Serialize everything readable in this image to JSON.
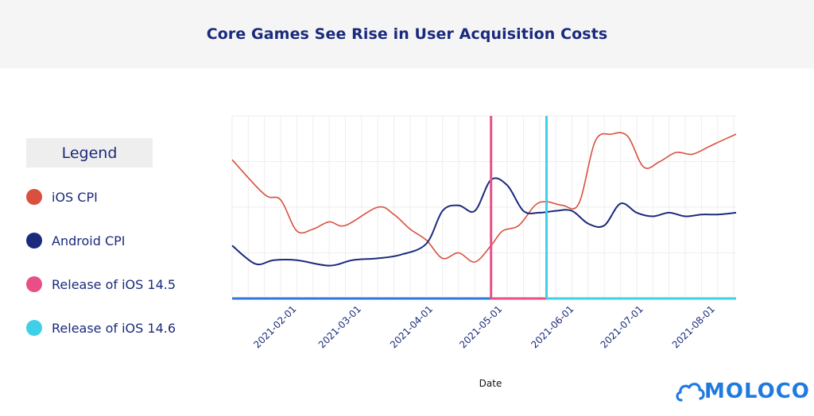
{
  "title": "Core Games See Rise in User Acquisition Costs",
  "legend": {
    "title": "Legend",
    "items": [
      {
        "label": "iOS CPI",
        "color": "#d9503f"
      },
      {
        "label": "Android CPI",
        "color": "#1a2a7c"
      },
      {
        "label": "Release of iOS 14.5",
        "color": "#e84f86"
      },
      {
        "label": "Release of iOS 14.6",
        "color": "#3fd0e8"
      }
    ]
  },
  "logo": {
    "text": "MOLOCO",
    "icon": "cloud-icon",
    "color": "#1f7ae0"
  },
  "chart_data": {
    "type": "line",
    "title": "Core Games See Rise in User Acquisition Costs",
    "xlabel": "Date",
    "ylabel": "",
    "x_tick_labels": [
      "2021-02-01",
      "2021-03-01",
      "2021-04-01",
      "2021-05-01",
      "2021-06-01",
      "2021-07-01",
      "2021-08-01"
    ],
    "x_range": [
      "2021-01-04",
      "2021-08-10"
    ],
    "y_range": [
      0,
      100
    ],
    "y_ticks_shown": false,
    "grid": true,
    "legend_position": "left",
    "series": [
      {
        "name": "iOS CPI",
        "color": "#d9503f",
        "x": [
          "2021-01-04",
          "2021-01-18",
          "2021-01-25",
          "2021-02-01",
          "2021-02-08",
          "2021-02-15",
          "2021-02-22",
          "2021-03-08",
          "2021-03-15",
          "2021-03-22",
          "2021-03-29",
          "2021-04-05",
          "2021-04-12",
          "2021-04-19",
          "2021-04-26",
          "2021-05-01",
          "2021-05-08",
          "2021-05-15",
          "2021-05-20",
          "2021-05-27",
          "2021-06-03",
          "2021-06-10",
          "2021-06-17",
          "2021-06-24",
          "2021-07-01",
          "2021-07-08",
          "2021-07-15",
          "2021-07-22",
          "2021-07-29",
          "2021-08-03",
          "2021-08-10"
        ],
        "values": [
          76,
          57,
          54,
          37,
          38,
          42,
          40,
          50,
          46,
          38,
          32,
          22,
          25,
          20,
          29,
          37,
          40,
          51,
          53,
          51,
          52,
          86,
          90,
          89,
          72,
          75,
          80,
          79,
          83,
          86,
          90
        ]
      },
      {
        "name": "Android CPI",
        "color": "#1a2a7c",
        "x": [
          "2021-01-04",
          "2021-01-14",
          "2021-01-22",
          "2021-02-01",
          "2021-02-15",
          "2021-02-25",
          "2021-03-08",
          "2021-03-18",
          "2021-03-29",
          "2021-04-05",
          "2021-04-12",
          "2021-04-19",
          "2021-04-26",
          "2021-05-03",
          "2021-05-10",
          "2021-05-17",
          "2021-05-24",
          "2021-05-31",
          "2021-06-07",
          "2021-06-14",
          "2021-06-21",
          "2021-06-28",
          "2021-07-05",
          "2021-07-12",
          "2021-07-19",
          "2021-07-26",
          "2021-08-02",
          "2021-08-10"
        ],
        "values": [
          29,
          19,
          21,
          21,
          18,
          21,
          22,
          24,
          30,
          48,
          51,
          48,
          65,
          62,
          48,
          47,
          48,
          48,
          41,
          40,
          52,
          47,
          45,
          47,
          45,
          46,
          46,
          47
        ]
      }
    ],
    "events": [
      {
        "name": "Release of iOS 14.5",
        "date": "2021-04-26",
        "color": "#e84f86"
      },
      {
        "name": "Release of iOS 14.6",
        "date": "2021-05-20",
        "color": "#3fd0e8"
      }
    ]
  }
}
